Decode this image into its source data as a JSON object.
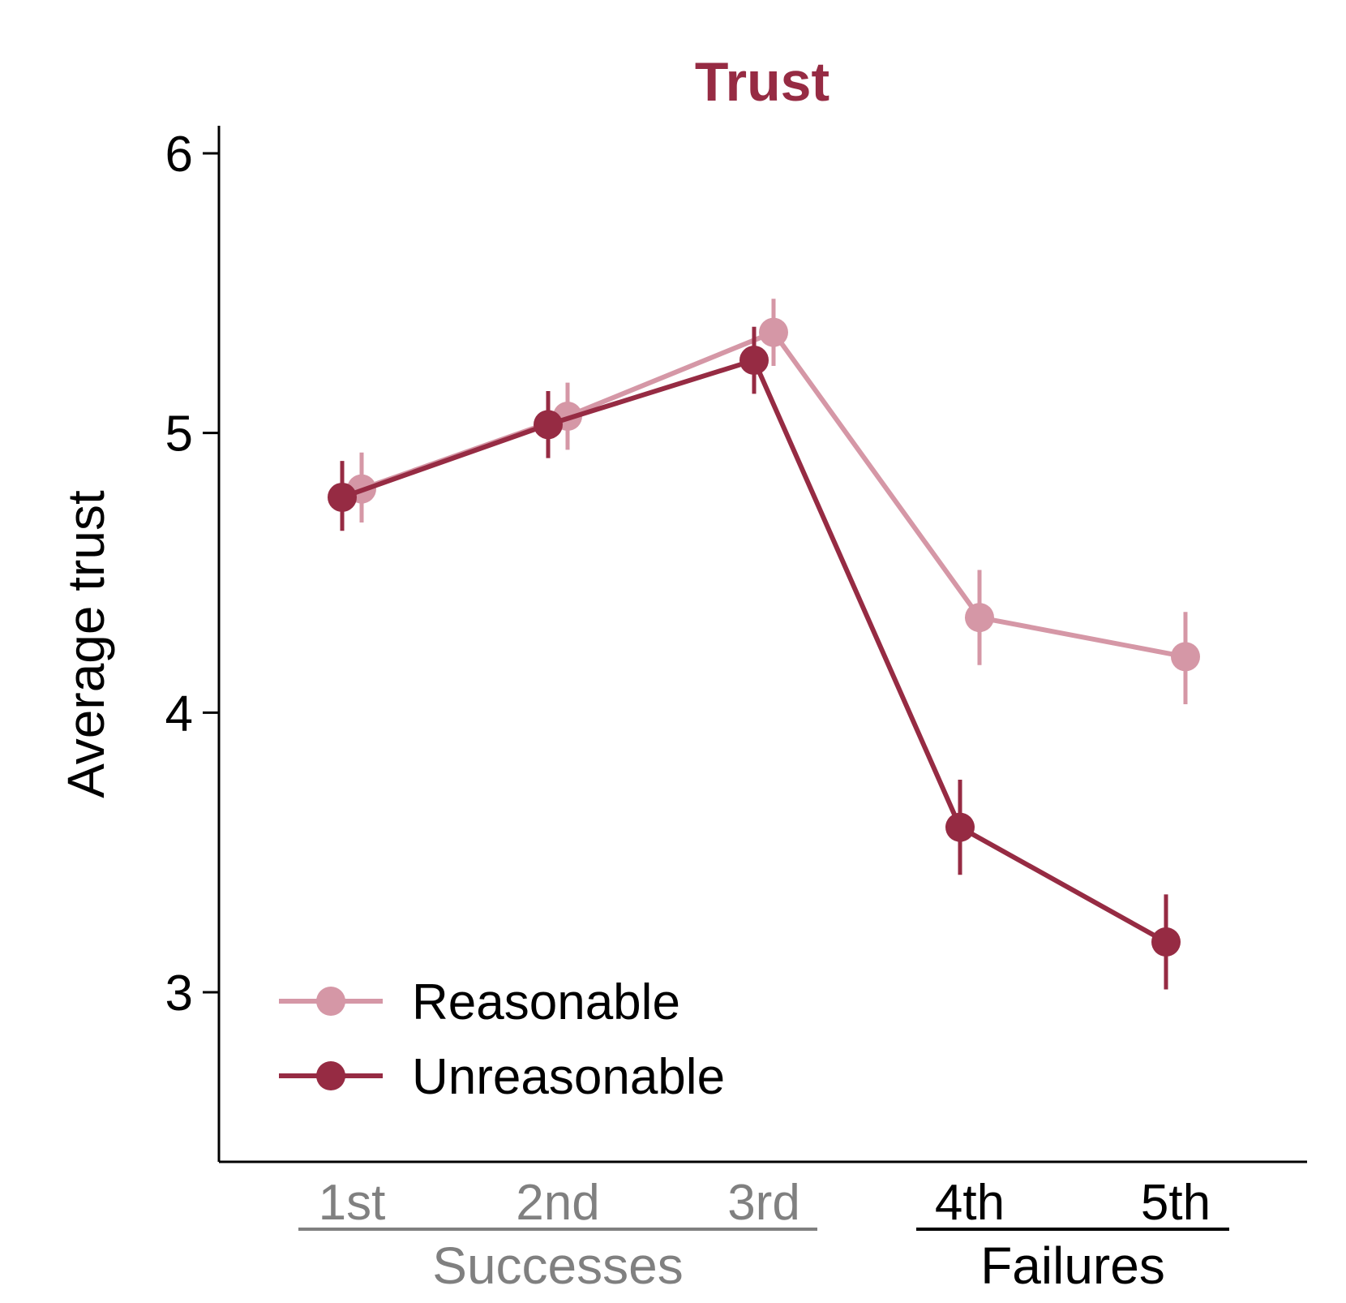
{
  "chart_data": {
    "type": "line",
    "title": "Trust",
    "ylabel": "Average trust",
    "xlabel": "",
    "categories": [
      "1st",
      "2nd",
      "3rd",
      "4th",
      "5th"
    ],
    "groups": [
      {
        "label": "Successes",
        "categories": [
          "1st",
          "2nd",
          "3rd"
        ],
        "color": "#808080"
      },
      {
        "label": "Failures",
        "categories": [
          "4th",
          "5th"
        ],
        "color": "#000000"
      }
    ],
    "ylim": [
      2.4,
      6.1
    ],
    "yticks": [
      "3",
      "4",
      "5",
      "6"
    ],
    "series": [
      {
        "name": "Reasonable",
        "color": "#d597a6",
        "values": [
          4.8,
          5.06,
          5.36,
          4.34,
          4.2
        ],
        "err_low": [
          4.68,
          4.94,
          5.24,
          4.17,
          4.03
        ],
        "err_high": [
          4.93,
          5.18,
          5.48,
          4.51,
          4.36
        ]
      },
      {
        "name": "Unreasonable",
        "color": "#962b43",
        "values": [
          4.77,
          5.03,
          5.26,
          3.59,
          3.18
        ],
        "err_low": [
          4.65,
          4.91,
          5.14,
          3.42,
          3.01
        ],
        "err_high": [
          4.9,
          5.15,
          5.38,
          3.76,
          3.35
        ]
      }
    ],
    "legend": "bottom-left",
    "grid": false
  }
}
